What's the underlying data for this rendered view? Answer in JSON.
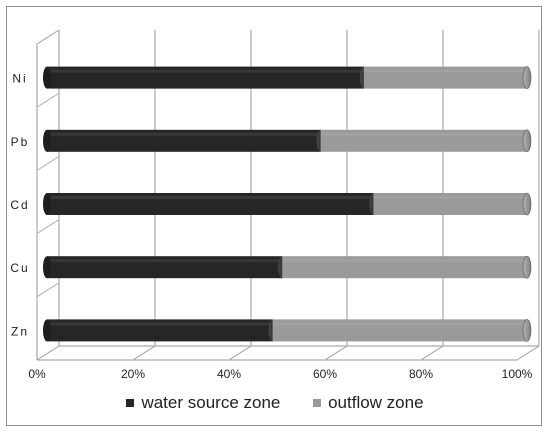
{
  "chart_data": {
    "type": "bar",
    "orientation": "horizontal",
    "stacked": "percent",
    "categories": [
      "Ni",
      "Pb",
      "Cd",
      "Cu",
      "Zn"
    ],
    "series": [
      {
        "name": "water source zone",
        "values": [
          66,
          57,
          68,
          49,
          47
        ],
        "color": "#262626"
      },
      {
        "name": "outflow zone",
        "values": [
          34,
          43,
          32,
          51,
          53
        ],
        "color": "#9a9a9a"
      }
    ],
    "x_ticks": [
      "0%",
      "20%",
      "40%",
      "60%",
      "80%",
      "100%"
    ],
    "xlim": [
      0,
      100
    ],
    "grid": true,
    "legend_position": "bottom"
  }
}
